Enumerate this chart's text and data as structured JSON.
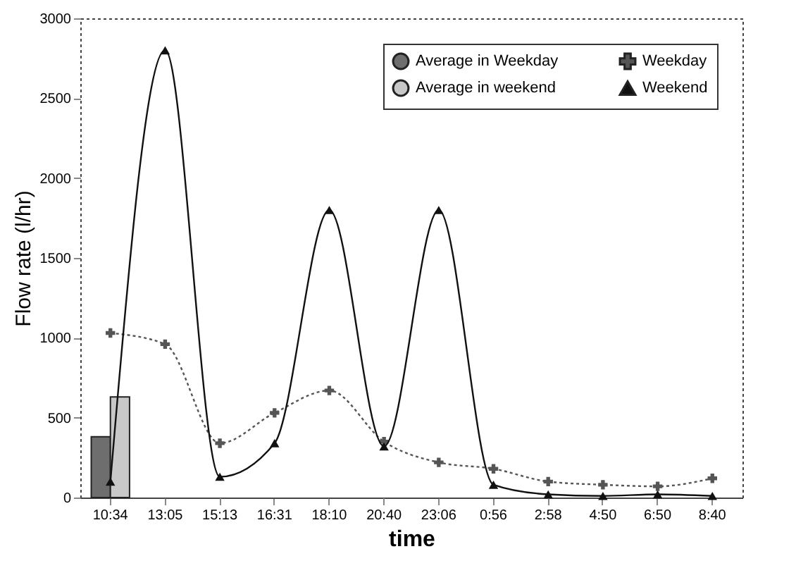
{
  "chart_data": {
    "type": "line",
    "xlabel": "time",
    "ylabel": "Flow rate (l/hr)",
    "categories": [
      "10:34",
      "13:05",
      "15:13",
      "16:31",
      "18:10",
      "20:40",
      "23:06",
      "0:56",
      "2:58",
      "4:50",
      "6:50",
      "8:40"
    ],
    "series": [
      {
        "name": "Average in Weekday",
        "type": "bar",
        "color": "#6e6e6e",
        "values": [
          380,
          null,
          null,
          null,
          null,
          null,
          null,
          null,
          null,
          null,
          null,
          null
        ]
      },
      {
        "name": "Average in weekend",
        "type": "bar",
        "color": "#c8c8c8",
        "values": [
          630,
          null,
          null,
          null,
          null,
          null,
          null,
          null,
          null,
          null,
          null,
          null
        ]
      },
      {
        "name": "Weekday",
        "color": "#555555",
        "marker": "cross",
        "line_style": "dotted",
        "values": [
          1030,
          960,
          340,
          530,
          670,
          350,
          220,
          180,
          100,
          80,
          70,
          120
        ]
      },
      {
        "name": "Weekend",
        "color": "#111111",
        "marker": "triangle",
        "line_style": "solid",
        "values": [
          100,
          2800,
          130,
          340,
          1800,
          320,
          1800,
          80,
          20,
          10,
          20,
          10
        ]
      }
    ],
    "ylim": [
      0,
      3000
    ],
    "yticks": [
      0,
      500,
      1000,
      1500,
      2000,
      2500,
      3000
    ],
    "grid": false,
    "legend": "top right"
  }
}
